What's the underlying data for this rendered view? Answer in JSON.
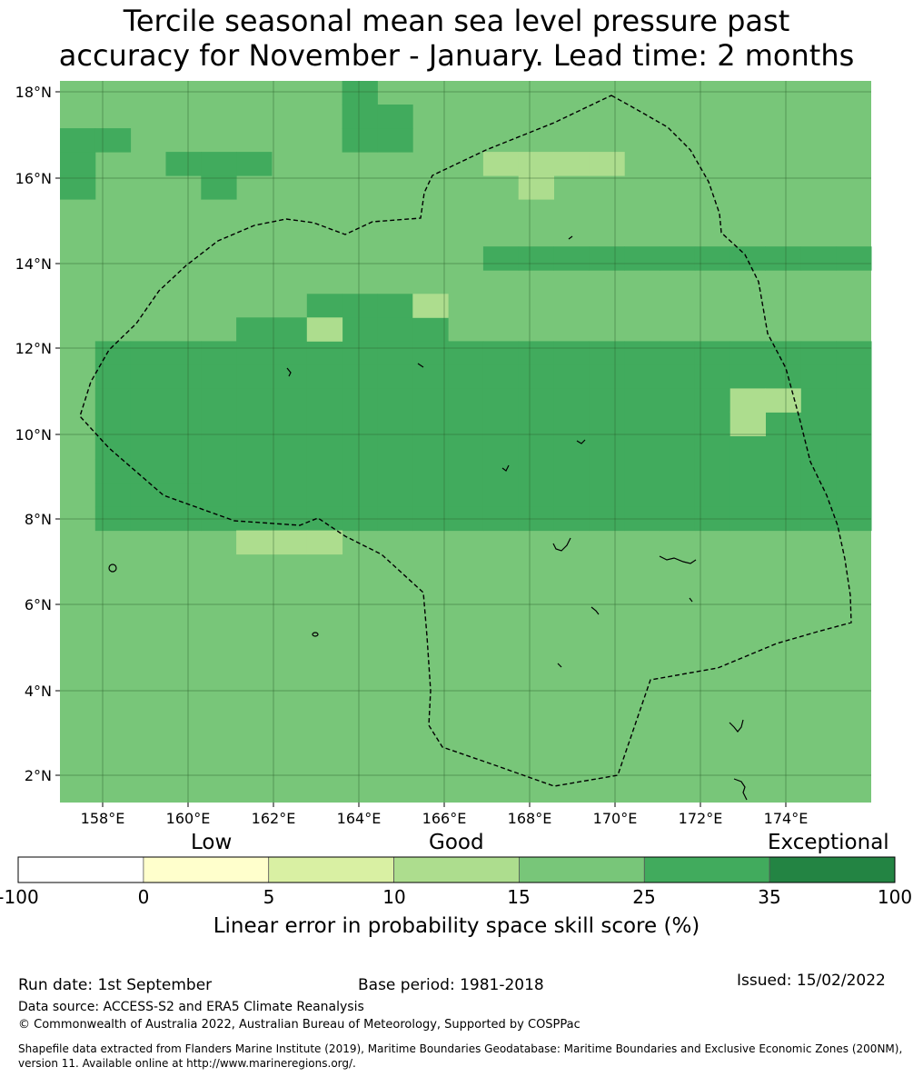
{
  "title": {
    "line1": "Tercile seasonal mean sea level pressure past",
    "line2": "accuracy for November - January. Lead time: 2 months"
  },
  "map": {
    "lat_labels": [
      "18°N",
      "16°N",
      "14°N",
      "12°N",
      "10°N",
      "8°N",
      "6°N",
      "4°N",
      "2°N"
    ],
    "lon_labels": [
      "158°E",
      "160°E",
      "162°E",
      "164°E",
      "166°E",
      "168°E",
      "170°E",
      "172°E",
      "174°E"
    ],
    "base_color": "#78c679",
    "class_colors": {
      "10-15": "#addd8e",
      "15-25": "#78c679",
      "25-35": "#41ab5d"
    },
    "grid_cells_25_35": [
      [
        8,
        0
      ],
      [
        8,
        1
      ],
      [
        8,
        2
      ],
      [
        9,
        1
      ],
      [
        9,
        2
      ],
      [
        1,
        11
      ],
      [
        1,
        12
      ],
      [
        1,
        13
      ],
      [
        1,
        14
      ],
      [
        1,
        15
      ],
      [
        1,
        16
      ],
      [
        1,
        17
      ],
      [
        1,
        18
      ],
      [
        2,
        11
      ],
      [
        2,
        12
      ],
      [
        2,
        13
      ],
      [
        2,
        14
      ],
      [
        2,
        15
      ],
      [
        2,
        16
      ],
      [
        2,
        17
      ],
      [
        2,
        18
      ],
      [
        3,
        11
      ],
      [
        3,
        12
      ],
      [
        3,
        13
      ],
      [
        3,
        14
      ],
      [
        3,
        15
      ],
      [
        3,
        16
      ],
      [
        3,
        17
      ],
      [
        3,
        18
      ],
      [
        4,
        11
      ],
      [
        4,
        12
      ],
      [
        4,
        13
      ],
      [
        4,
        14
      ],
      [
        4,
        15
      ],
      [
        4,
        16
      ],
      [
        4,
        17
      ],
      [
        4,
        18
      ],
      [
        5,
        11
      ],
      [
        5,
        12
      ],
      [
        5,
        13
      ],
      [
        5,
        14
      ],
      [
        5,
        15
      ],
      [
        5,
        16
      ],
      [
        5,
        17
      ],
      [
        5,
        18
      ],
      [
        6,
        11
      ],
      [
        6,
        12
      ],
      [
        6,
        13
      ],
      [
        6,
        14
      ],
      [
        6,
        15
      ],
      [
        6,
        16
      ],
      [
        6,
        17
      ],
      [
        6,
        18
      ],
      [
        7,
        11
      ],
      [
        7,
        12
      ],
      [
        7,
        13
      ],
      [
        7,
        14
      ],
      [
        7,
        15
      ],
      [
        7,
        16
      ],
      [
        7,
        17
      ],
      [
        7,
        18
      ],
      [
        8,
        11
      ],
      [
        8,
        12
      ],
      [
        8,
        13
      ],
      [
        8,
        14
      ],
      [
        8,
        15
      ],
      [
        8,
        16
      ],
      [
        8,
        17
      ],
      [
        8,
        18
      ],
      [
        9,
        11
      ],
      [
        9,
        12
      ],
      [
        9,
        13
      ],
      [
        9,
        14
      ],
      [
        9,
        15
      ],
      [
        9,
        16
      ],
      [
        9,
        17
      ],
      [
        9,
        18
      ],
      [
        10,
        11
      ],
      [
        10,
        12
      ],
      [
        10,
        13
      ],
      [
        10,
        14
      ],
      [
        10,
        15
      ],
      [
        10,
        16
      ],
      [
        10,
        17
      ],
      [
        10,
        18
      ],
      [
        11,
        11
      ],
      [
        11,
        12
      ],
      [
        11,
        13
      ],
      [
        11,
        14
      ],
      [
        11,
        15
      ],
      [
        11,
        16
      ],
      [
        11,
        17
      ],
      [
        11,
        18
      ],
      [
        12,
        11
      ],
      [
        12,
        12
      ],
      [
        12,
        13
      ],
      [
        12,
        14
      ],
      [
        12,
        15
      ],
      [
        12,
        16
      ],
      [
        12,
        17
      ],
      [
        12,
        18
      ],
      [
        13,
        11
      ],
      [
        13,
        12
      ],
      [
        13,
        13
      ],
      [
        13,
        14
      ],
      [
        13,
        15
      ],
      [
        13,
        16
      ],
      [
        13,
        17
      ],
      [
        13,
        18
      ],
      [
        14,
        11
      ],
      [
        14,
        12
      ],
      [
        14,
        13
      ],
      [
        14,
        14
      ],
      [
        14,
        15
      ],
      [
        14,
        16
      ],
      [
        14,
        17
      ],
      [
        14,
        18
      ],
      [
        15,
        11
      ],
      [
        15,
        12
      ],
      [
        15,
        13
      ],
      [
        15,
        14
      ],
      [
        15,
        15
      ],
      [
        15,
        16
      ],
      [
        15,
        17
      ],
      [
        15,
        18
      ],
      [
        16,
        11
      ],
      [
        16,
        12
      ],
      [
        16,
        13
      ],
      [
        16,
        14
      ],
      [
        16,
        15
      ],
      [
        16,
        16
      ],
      [
        16,
        17
      ],
      [
        16,
        18
      ],
      [
        17,
        11
      ],
      [
        17,
        12
      ],
      [
        17,
        13
      ],
      [
        17,
        14
      ],
      [
        17,
        15
      ],
      [
        17,
        16
      ],
      [
        17,
        17
      ],
      [
        17,
        18
      ],
      [
        18,
        11
      ],
      [
        18,
        12
      ],
      [
        18,
        13
      ],
      [
        18,
        14
      ],
      [
        18,
        15
      ],
      [
        18,
        16
      ],
      [
        18,
        17
      ],
      [
        18,
        18
      ],
      [
        19,
        11
      ],
      [
        19,
        12
      ],
      [
        19,
        13
      ],
      [
        19,
        14
      ],
      [
        19,
        15
      ],
      [
        19,
        16
      ],
      [
        19,
        17
      ],
      [
        19,
        18
      ],
      [
        20,
        11
      ],
      [
        20,
        12
      ],
      [
        20,
        13
      ],
      [
        20,
        14
      ],
      [
        20,
        15
      ],
      [
        20,
        16
      ],
      [
        20,
        17
      ],
      [
        20,
        18
      ],
      [
        21,
        11
      ],
      [
        21,
        12
      ],
      [
        21,
        13
      ],
      [
        21,
        14
      ],
      [
        21,
        15
      ],
      [
        21,
        16
      ],
      [
        21,
        17
      ],
      [
        21,
        18
      ],
      [
        22,
        11
      ],
      [
        22,
        12
      ],
      [
        22,
        13
      ],
      [
        22,
        14
      ],
      [
        22,
        15
      ],
      [
        22,
        16
      ],
      [
        22,
        17
      ],
      [
        22,
        18
      ],
      [
        5,
        10
      ],
      [
        6,
        10
      ],
      [
        7,
        10
      ],
      [
        8,
        10
      ],
      [
        9,
        10
      ],
      [
        10,
        10
      ],
      [
        7,
        9
      ],
      [
        8,
        9
      ],
      [
        9,
        9
      ],
      [
        4,
        12
      ],
      [
        5,
        13
      ],
      [
        12,
        7
      ],
      [
        13,
        7
      ],
      [
        14,
        7
      ],
      [
        15,
        7
      ],
      [
        16,
        7
      ],
      [
        17,
        7
      ],
      [
        18,
        7
      ],
      [
        19,
        7
      ],
      [
        20,
        7
      ],
      [
        21,
        7
      ],
      [
        22,
        7
      ],
      [
        3,
        13
      ],
      [
        3,
        14
      ],
      [
        4,
        13
      ],
      [
        4,
        14
      ],
      [
        5,
        14
      ],
      [
        6,
        14
      ],
      [
        7,
        14
      ],
      [
        8,
        14
      ],
      [
        9,
        14
      ],
      [
        10,
        14
      ],
      [
        11,
        14
      ],
      [
        12,
        14
      ],
      [
        13,
        14
      ],
      [
        14,
        14
      ],
      [
        15,
        14
      ],
      [
        16,
        14
      ],
      [
        17,
        14
      ],
      [
        18,
        14
      ],
      [
        8,
        15
      ],
      [
        9,
        15
      ],
      [
        10,
        15
      ],
      [
        11,
        15
      ],
      [
        12,
        15
      ],
      [
        13,
        15
      ],
      [
        14,
        15
      ],
      [
        15,
        15
      ],
      [
        16,
        15
      ],
      [
        17,
        15
      ],
      [
        18,
        15
      ],
      [
        19,
        15
      ],
      [
        20,
        15
      ],
      [
        21,
        15
      ],
      [
        22,
        15
      ],
      [
        4,
        16
      ],
      [
        5,
        16
      ],
      [
        6,
        16
      ],
      [
        7,
        16
      ],
      [
        8,
        16
      ],
      [
        9,
        16
      ],
      [
        10,
        16
      ],
      [
        11,
        16
      ],
      [
        12,
        16
      ],
      [
        13,
        16
      ],
      [
        14,
        16
      ],
      [
        15,
        16
      ],
      [
        16,
        16
      ],
      [
        17,
        16
      ],
      [
        18,
        16
      ],
      [
        19,
        16
      ],
      [
        20,
        16
      ],
      [
        21,
        16
      ],
      [
        22,
        16
      ],
      [
        0,
        2
      ],
      [
        0,
        3
      ],
      [
        0,
        4
      ],
      [
        1,
        2
      ],
      [
        3,
        3
      ],
      [
        4,
        3
      ],
      [
        5,
        3
      ],
      [
        4,
        4
      ]
    ],
    "grid_cells_10_15": [
      [
        5,
        19
      ],
      [
        6,
        19
      ],
      [
        7,
        19
      ],
      [
        12,
        3
      ],
      [
        13,
        3
      ],
      [
        14,
        3
      ],
      [
        15,
        3
      ],
      [
        13,
        4
      ],
      [
        7,
        10
      ],
      [
        10,
        9
      ],
      [
        19,
        13
      ],
      [
        20,
        13
      ],
      [
        19,
        14
      ]
    ]
  },
  "colorbar": {
    "levels": [
      "Low",
      "Good",
      "Exceptional"
    ],
    "ticks": [
      "-100",
      "0",
      "5",
      "10",
      "15",
      "25",
      "35",
      "100"
    ],
    "colors": [
      "#ffffff",
      "#ffffcc",
      "#d9f0a3",
      "#addd8e",
      "#78c679",
      "#41ab5d",
      "#238443"
    ],
    "label": "Linear error in probability space skill score (%)"
  },
  "footer": {
    "run_date": "Run date: 1st September",
    "base_period": "Base period: 1981-2018",
    "issued": "Issued: 15/02/2022",
    "data_source": "Data source: ACCESS-S2 and ERA5 Climate Reanalysis",
    "copyright": "© Commonwealth of Australia 2022, Australian Bureau of Meteorology, Supported by COSPPac",
    "shapefile_line1": "Shapefile data extracted from Flanders Marine Institute (2019), Maritime Boundaries Geodatabase: Maritime Boundaries and Exclusive Economic Zones (200NM),",
    "shapefile_line2": "version 11. Available online at http://www.marineregions.org/."
  }
}
